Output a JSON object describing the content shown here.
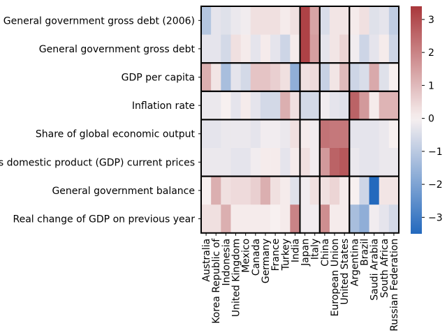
{
  "chart_data": {
    "type": "heatmap",
    "title": "",
    "xlabel": "",
    "ylabel": "",
    "rows": [
      "General government gross debt (2006)",
      "General government gross debt",
      "GDP per capita",
      "Inflation rate",
      "Share of global economic output",
      "Gross domestic product (GDP) current prices",
      "General government balance",
      "Real change of GDP on previous year"
    ],
    "columns": [
      "Australia",
      "Korea Republic of",
      "Indonesia",
      "United Kingdom",
      "Mexico",
      "Canada",
      "Germany",
      "France",
      "Turkey",
      "India",
      "Japan",
      "Italy",
      "China",
      "European Union",
      "United States",
      "Argentina",
      "Brazil",
      "Saudi Arabia",
      "South Africa",
      "Russian Federation"
    ],
    "values": [
      [
        -1.1,
        -0.3,
        -0.4,
        -0.2,
        -0.1,
        0.3,
        0.3,
        0.3,
        0.1,
        0.3,
        3.2,
        1.4,
        -0.5,
        0.2,
        0.2,
        0.1,
        0.3,
        -0.4,
        -0.3,
        -0.9
      ],
      [
        -0.3,
        -0.3,
        -0.6,
        0.3,
        0.1,
        -0.3,
        0.1,
        -0.3,
        -0.7,
        0.1,
        3.2,
        1.5,
        -0.3,
        0.2,
        0.5,
        -0.1,
        -0.7,
        -0.3,
        0.1,
        -0.7
      ],
      [
        1.2,
        0.2,
        -1.3,
        -0.3,
        -0.6,
        0.8,
        0.8,
        0.6,
        0.3,
        -1.7,
        0.3,
        0.4,
        -0.8,
        0.2,
        1.0,
        -0.7,
        -0.5,
        1.3,
        -0.4,
        0.0
      ],
      [
        -0.2,
        -0.2,
        0.0,
        -0.3,
        0.1,
        -0.3,
        -0.6,
        -0.6,
        1.2,
        0.3,
        -0.6,
        -0.6,
        -0.1,
        -0.3,
        -0.4,
        2.6,
        1.6,
        0.1,
        1.1,
        1.1
      ],
      [
        -0.3,
        -0.3,
        -0.2,
        -0.2,
        -0.2,
        -0.3,
        -0.1,
        -0.1,
        -0.2,
        0.3,
        0.1,
        -0.1,
        2.3,
        2.2,
        2.2,
        -0.3,
        -0.3,
        -0.3,
        -0.2,
        0.0
      ],
      [
        -0.2,
        -0.2,
        -0.2,
        -0.3,
        -0.3,
        -0.1,
        0.1,
        0.1,
        -0.3,
        0.1,
        0.3,
        -0.1,
        1.6,
        2.6,
        2.8,
        -0.2,
        -0.3,
        -0.3,
        -0.2,
        -0.2
      ],
      [
        0.0,
        1.2,
        0.3,
        0.4,
        0.4,
        0.6,
        1.2,
        0.3,
        0.1,
        -0.4,
        -0.1,
        0.3,
        0.3,
        0.5,
        0.1,
        0.0,
        -0.7,
        -3.5,
        0.2,
        0.2
      ],
      [
        0.3,
        0.3,
        1.2,
        0.1,
        0.1,
        0.1,
        0.1,
        0.0,
        0.1,
        2.0,
        -0.1,
        -0.1,
        1.8,
        0.1,
        0.1,
        -1.3,
        -1.7,
        -0.1,
        -0.3,
        -0.6
      ]
    ],
    "vmin": -3.5,
    "vmax": 3.4,
    "colormap": "vlag",
    "colorbar_ticks": [
      3,
      2,
      1,
      0,
      -1,
      -2,
      -3
    ],
    "colors": {
      "low": "#2369bd",
      "mid": "#f7f0f0",
      "high": "#a9373b"
    },
    "row_groups": [
      [
        0,
        1
      ],
      [
        2
      ],
      [
        3
      ],
      [
        4,
        5
      ],
      [
        6,
        7
      ]
    ],
    "column_groups": [
      [
        0,
        9
      ],
      [
        10,
        11
      ],
      [
        12,
        14
      ],
      [
        15,
        19
      ]
    ]
  }
}
